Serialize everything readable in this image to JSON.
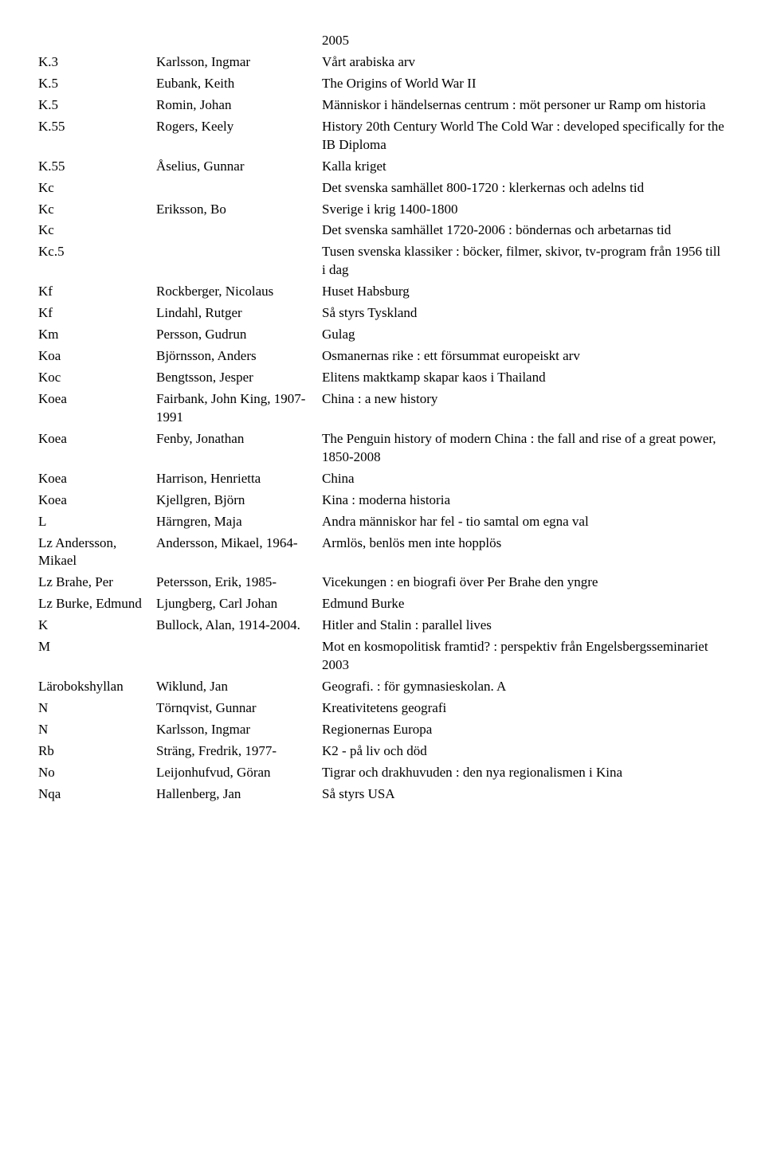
{
  "rows": [
    {
      "c1": "",
      "c2": "",
      "c3": "2005"
    },
    {
      "c1": "K.3",
      "c2": "Karlsson, Ingmar",
      "c3": "Vårt arabiska arv"
    },
    {
      "c1": "K.5",
      "c2": "Eubank, Keith",
      "c3": "The Origins of World War II"
    },
    {
      "c1": "K.5",
      "c2": "Romin, Johan",
      "c3": "Människor i händelsernas centrum : möt personer ur Ramp om historia"
    },
    {
      "c1": "K.55",
      "c2": "Rogers, Keely",
      "c3": "History 20th Century World The Cold War : developed specifically for the IB Diploma"
    },
    {
      "c1": "K.55",
      "c2": "Åselius, Gunnar",
      "c3": "Kalla kriget"
    },
    {
      "c1": "Kc",
      "c2": "",
      "c3": "Det svenska samhället 800-1720 : klerkernas och adelns tid"
    },
    {
      "c1": "Kc",
      "c2": "Eriksson, Bo",
      "c3": "Sverige i krig 1400-1800"
    },
    {
      "c1": "Kc",
      "c2": "",
      "c3": "Det svenska samhället 1720-2006 : böndernas och arbetarnas tid"
    },
    {
      "c1": "Kc.5",
      "c2": "",
      "c3": "Tusen svenska klassiker : böcker, filmer, skivor, tv-program från 1956 till i dag"
    },
    {
      "c1": "Kf",
      "c2": "Rockberger, Nicolaus",
      "c3": "Huset Habsburg"
    },
    {
      "c1": "Kf",
      "c2": "Lindahl, Rutger",
      "c3": "Så styrs Tyskland"
    },
    {
      "c1": "Km",
      "c2": "Persson, Gudrun",
      "c3": "Gulag"
    },
    {
      "c1": "Koa",
      "c2": "Björnsson, Anders",
      "c3": "Osmanernas rike : ett försummat europeiskt arv"
    },
    {
      "c1": "Koc",
      "c2": "Bengtsson, Jesper",
      "c3": "Elitens maktkamp skapar kaos i Thailand"
    },
    {
      "c1": "Koea",
      "c2": "Fairbank, John King, 1907-1991",
      "c3": "China : a new history"
    },
    {
      "c1": "Koea",
      "c2": "Fenby, Jonathan",
      "c3": "The Penguin history of modern China : the fall and rise of a great power, 1850-2008"
    },
    {
      "c1": "Koea",
      "c2": "Harrison, Henrietta",
      "c3": "China"
    },
    {
      "c1": "Koea",
      "c2": "Kjellgren, Björn",
      "c3": "Kina : moderna historia"
    },
    {
      "c1": "L",
      "c2": "Härngren, Maja",
      "c3": "Andra människor har fel - tio samtal om egna val"
    },
    {
      "c1": "Lz Andersson, Mikael",
      "c2": "Andersson, Mikael, 1964-",
      "c3": "Armlös, benlös men inte hopplös"
    },
    {
      "c1": "Lz Brahe, Per",
      "c2": "Petersson, Erik, 1985-",
      "c3": "Vicekungen : en biografi över Per Brahe den yngre"
    },
    {
      "c1": "Lz Burke, Edmund",
      "c2": "Ljungberg, Carl Johan",
      "c3": "Edmund Burke"
    },
    {
      "c1": "K",
      "c2": "Bullock, Alan, 1914-2004.",
      "c3": "Hitler and Stalin : parallel lives"
    },
    {
      "c1": "M",
      "c2": "",
      "c3": "Mot en kosmopolitisk framtid? : perspektiv från Engelsbergsseminariet 2003"
    },
    {
      "c1": "Lärobokshyllan",
      "c2": "Wiklund, Jan",
      "c3": "Geografi. : för gymnasieskolan. A"
    },
    {
      "c1": "N",
      "c2": "Törnqvist, Gunnar",
      "c3": "Kreativitetens geografi"
    },
    {
      "c1": "N",
      "c2": "Karlsson, Ingmar",
      "c3": "Regionernas Europa"
    },
    {
      "c1": "Rb",
      "c2": "Sträng, Fredrik, 1977-",
      "c3": "K2 - på liv och död"
    },
    {
      "c1": "No",
      "c2": "Leijonhufvud, Göran",
      "c3": "Tigrar och drakhuvuden : den nya regionalismen i Kina"
    },
    {
      "c1": "Nqa",
      "c2": "Hallenberg, Jan",
      "c3": "Så styrs USA"
    }
  ]
}
